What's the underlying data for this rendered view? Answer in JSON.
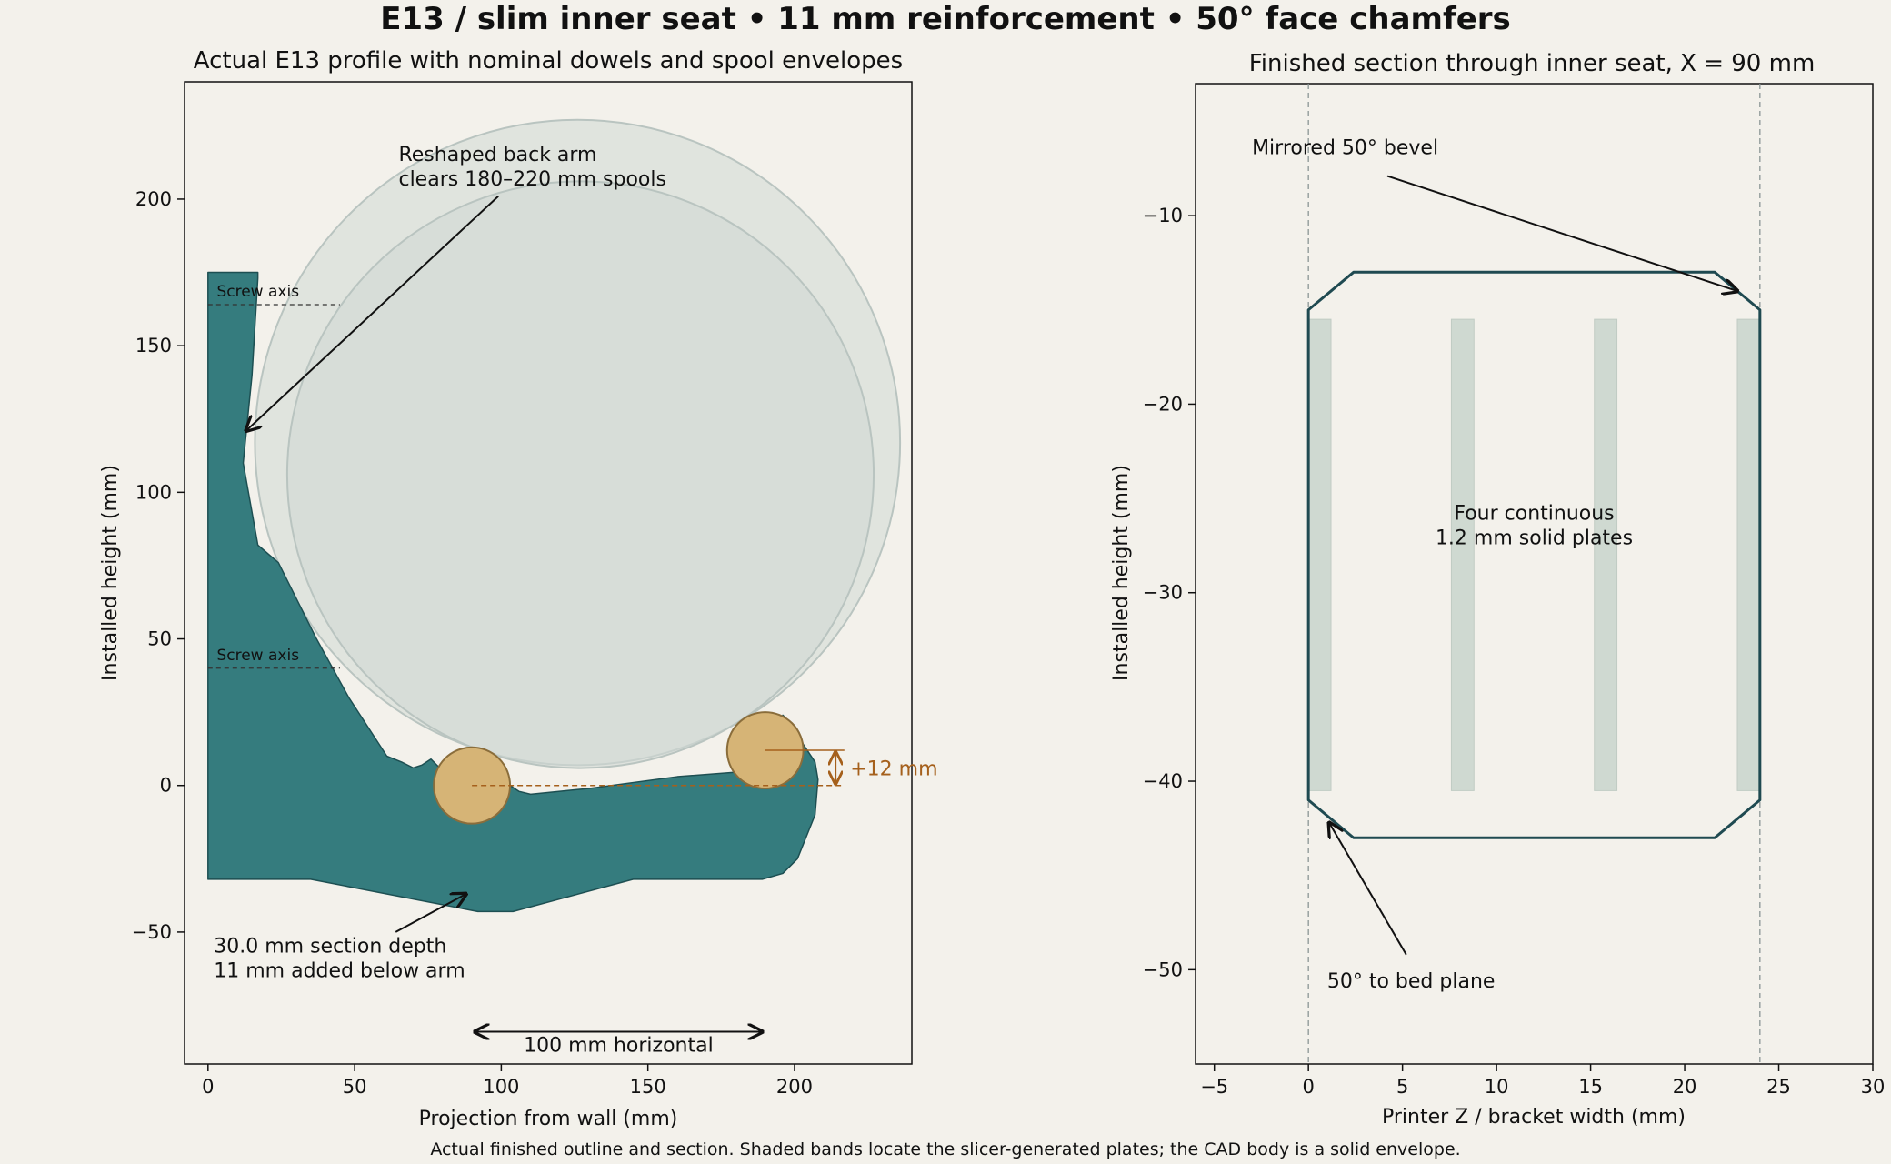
{
  "title": "E13 / slim inner seat • 11 mm reinforcement • 50° face chamfers",
  "caption": "Actual finished outline and section. Shaded bands locate the slicer-generated plates; the CAD body is a solid envelope.",
  "colors": {
    "background": "#f3f1eb",
    "bracket_fill": "#357c7e",
    "bracket_edge": "#1d4f52",
    "spool_fill": "#d0d8d4",
    "dowel_fill": "#d6b476",
    "dowel_edge": "#8a6d3b",
    "offset_accent": "#a5601c",
    "section_outline": "#1f4a51",
    "plate_fill": "#cfd9d1"
  },
  "left_panel": {
    "title": "Actual E13 profile with nominal dowels and spool envelopes",
    "xlabel": "Projection from wall (mm)",
    "ylabel": "Installed height (mm)",
    "xlim": [
      -8,
      240
    ],
    "ylim": [
      -95,
      240
    ],
    "xticks": [
      "0",
      "50",
      "100",
      "150",
      "200"
    ],
    "yticks": [
      "−50",
      "0",
      "50",
      "100",
      "150",
      "200"
    ],
    "bracket_outline": [
      [
        0,
        -32
      ],
      [
        35,
        -32
      ],
      [
        92,
        -43
      ],
      [
        104,
        -43
      ],
      [
        145,
        -32
      ],
      [
        189,
        -32
      ],
      [
        196,
        -30
      ],
      [
        201,
        -25
      ],
      [
        207,
        -10
      ],
      [
        208,
        2
      ],
      [
        207,
        8
      ],
      [
        203,
        14
      ],
      [
        200,
        20
      ],
      [
        196,
        24
      ],
      [
        194,
        14
      ],
      [
        186,
        5
      ],
      [
        160,
        3
      ],
      [
        130,
        -1
      ],
      [
        110,
        -3
      ],
      [
        106,
        -2
      ],
      [
        103,
        0
      ],
      [
        99,
        2
      ],
      [
        91,
        3
      ],
      [
        84,
        4
      ],
      [
        79,
        6
      ],
      [
        76,
        9
      ],
      [
        73,
        7
      ],
      [
        70,
        6
      ],
      [
        66,
        8
      ],
      [
        61,
        10
      ],
      [
        48,
        30
      ],
      [
        37,
        50
      ],
      [
        24,
        76
      ],
      [
        17,
        82
      ],
      [
        12,
        110
      ],
      [
        15,
        140
      ],
      [
        17,
        173
      ],
      [
        17,
        175
      ],
      [
        0,
        175
      ]
    ],
    "spools": [
      {
        "cx": 126,
        "cy": 117,
        "r": 110
      },
      {
        "cx": 127,
        "cy": 106,
        "r": 100
      }
    ],
    "dowels": [
      {
        "cx": 90,
        "cy": 0,
        "r": 13
      },
      {
        "cx": 190,
        "cy": 12,
        "r": 13
      }
    ],
    "screw_axes": [
      {
        "y": 164,
        "label": "Screw axis"
      },
      {
        "y": 40,
        "label": "Screw axis"
      }
    ],
    "offset_label": "+12 mm",
    "annotations": {
      "back_arm": [
        "Reshaped back arm",
        "clears 180–220 mm spools"
      ],
      "section_depth": [
        "30.0 mm section depth",
        "11 mm added below arm"
      ],
      "horizontal": "100 mm horizontal"
    }
  },
  "right_panel": {
    "title": "Finished section through inner seat, X = 90 mm",
    "xlabel": "Printer Z / bracket width (mm)",
    "ylabel": "Installed height (mm)",
    "xlim": [
      -6,
      30
    ],
    "ylim": [
      -55,
      -3
    ],
    "xticks": [
      "−5",
      "0",
      "5",
      "10",
      "15",
      "20",
      "25",
      "30"
    ],
    "yticks": [
      "−50",
      "−40",
      "−30",
      "−20",
      "−10"
    ],
    "section_outline": [
      [
        0,
        -15
      ],
      [
        2.4,
        -13
      ],
      [
        21.6,
        -13
      ],
      [
        24,
        -15
      ],
      [
        24,
        -41
      ],
      [
        21.6,
        -43
      ],
      [
        2.4,
        -43
      ],
      [
        0,
        -41
      ]
    ],
    "plates": [
      {
        "x0": 0,
        "x1": 1.2
      },
      {
        "x0": 7.6,
        "x1": 8.8
      },
      {
        "x0": 15.2,
        "x1": 16.4
      },
      {
        "x0": 22.8,
        "x1": 24
      }
    ],
    "plate_y": [
      -40.5,
      -15.5
    ],
    "annotations": {
      "bevel": "Mirrored 50° bevel",
      "plates": [
        "Four continuous",
        "1.2 mm solid plates"
      ],
      "bed": "50° to bed plane"
    }
  }
}
